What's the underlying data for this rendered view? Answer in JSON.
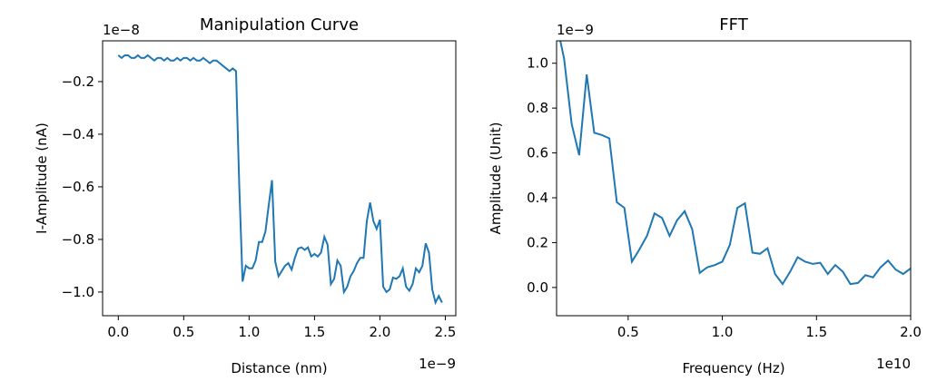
{
  "chart_data": [
    {
      "type": "line",
      "title": "Manipulation Curve",
      "xlabel": "Distance (nm)",
      "ylabel": "I-Amplitude (nA)",
      "x_offset_text": "1e−9",
      "y_offset_text": "1e−8",
      "grid": false,
      "xlim": [
        -0.12,
        2.58
      ],
      "ylim": [
        -1.09,
        -0.045
      ],
      "xticks": [
        {
          "value": 0,
          "label": "0.0"
        },
        {
          "value": 0.5,
          "label": "0.5"
        },
        {
          "value": 1,
          "label": "1.0"
        },
        {
          "value": 1.5,
          "label": "1.5"
        },
        {
          "value": 2,
          "label": "2.0"
        },
        {
          "value": 2.5,
          "label": "2.5"
        }
      ],
      "yticks": [
        {
          "value": -1,
          "label": "−1.0"
        },
        {
          "value": -0.8,
          "label": "−0.8"
        },
        {
          "value": -0.6,
          "label": "−0.6"
        },
        {
          "value": -0.4,
          "label": "−0.4"
        },
        {
          "value": -0.2,
          "label": "−0.2"
        }
      ],
      "x": [
        0,
        0.025,
        0.05,
        0.075,
        0.1,
        0.125,
        0.15,
        0.175,
        0.2,
        0.225,
        0.25,
        0.275,
        0.3,
        0.325,
        0.35,
        0.375,
        0.4,
        0.425,
        0.45,
        0.475,
        0.5,
        0.525,
        0.55,
        0.575,
        0.6,
        0.625,
        0.65,
        0.675,
        0.7,
        0.725,
        0.75,
        0.775,
        0.8,
        0.825,
        0.85,
        0.875,
        0.9,
        0.925,
        0.95,
        0.975,
        1,
        1.025,
        1.05,
        1.075,
        1.1,
        1.125,
        1.15,
        1.175,
        1.2,
        1.225,
        1.25,
        1.275,
        1.3,
        1.325,
        1.35,
        1.375,
        1.4,
        1.425,
        1.45,
        1.475,
        1.5,
        1.525,
        1.55,
        1.575,
        1.6,
        1.625,
        1.65,
        1.675,
        1.7,
        1.725,
        1.75,
        1.775,
        1.8,
        1.825,
        1.85,
        1.875,
        1.9,
        1.925,
        1.95,
        1.975,
        2,
        2.025,
        2.05,
        2.075,
        2.1,
        2.125,
        2.15,
        2.175,
        2.2,
        2.225,
        2.25,
        2.275,
        2.3,
        2.325,
        2.35,
        2.375,
        2.4,
        2.425,
        2.45,
        2.475
      ],
      "series": [
        {
          "color": "#1f77b4",
          "values": [
            -0.1,
            -0.11,
            -0.1,
            -0.1,
            -0.11,
            -0.11,
            -0.1,
            -0.11,
            -0.11,
            -0.1,
            -0.11,
            -0.12,
            -0.11,
            -0.11,
            -0.12,
            -0.11,
            -0.12,
            -0.12,
            -0.11,
            -0.12,
            -0.11,
            -0.11,
            -0.12,
            -0.11,
            -0.12,
            -0.12,
            -0.11,
            -0.12,
            -0.13,
            -0.12,
            -0.12,
            -0.13,
            -0.14,
            -0.15,
            -0.16,
            -0.15,
            -0.16,
            -0.6,
            -0.96,
            -0.9,
            -0.91,
            -0.91,
            -0.88,
            -0.81,
            -0.81,
            -0.77,
            -0.67,
            -0.575,
            -0.885,
            -0.94,
            -0.92,
            -0.9,
            -0.89,
            -0.915,
            -0.87,
            -0.835,
            -0.83,
            -0.84,
            -0.83,
            -0.865,
            -0.855,
            -0.865,
            -0.85,
            -0.79,
            -0.82,
            -0.97,
            -0.95,
            -0.88,
            -0.9,
            -1.0,
            -0.98,
            -0.94,
            -0.92,
            -0.89,
            -0.87,
            -0.87,
            -0.73,
            -0.66,
            -0.73,
            -0.76,
            -0.725,
            -0.98,
            -1.0,
            -0.99,
            -0.945,
            -0.95,
            -0.94,
            -0.91,
            -0.98,
            -0.995,
            -0.97,
            -0.91,
            -0.925,
            -0.9,
            -0.815,
            -0.85,
            -0.99,
            -1.04,
            -1.015,
            -1.04
          ]
        }
      ]
    },
    {
      "type": "line",
      "title": "FFT",
      "xlabel": "Frequency (Hz)",
      "ylabel": "Amplitude (Unit)",
      "x_offset_text": "1e10",
      "y_offset_text": "1e−9",
      "grid": false,
      "xlim": [
        0.12,
        2.0
      ],
      "ylim": [
        -0.126,
        1.1
      ],
      "xticks": [
        0.5,
        {
          "value": 1,
          "label": "1.0"
        },
        1.5,
        {
          "value": 2,
          "label": "2.0"
        }
      ],
      "yticks": [
        {
          "value": 0,
          "label": "0.0"
        },
        0.2,
        0.4,
        0.6,
        0.8,
        {
          "value": 1,
          "label": "1.0"
        }
      ],
      "x": [
        0.12,
        0.16,
        0.2,
        0.24,
        0.28,
        0.32,
        0.36,
        0.4,
        0.44,
        0.48,
        0.52,
        0.56,
        0.6,
        0.64,
        0.68,
        0.72,
        0.76,
        0.8,
        0.84,
        0.88,
        0.92,
        0.96,
        1,
        1.04,
        1.08,
        1.12,
        1.16,
        1.2,
        1.24,
        1.28,
        1.32,
        1.36,
        1.4,
        1.44,
        1.48,
        1.52,
        1.56,
        1.6,
        1.64,
        1.68,
        1.72,
        1.76,
        1.8,
        1.84,
        1.88,
        1.92,
        1.96,
        2
      ],
      "series": [
        {
          "color": "#1f77b4",
          "values": [
            1.18,
            1.02,
            0.73,
            0.59,
            0.95,
            0.69,
            0.68,
            0.665,
            0.38,
            0.355,
            0.115,
            0.17,
            0.23,
            0.33,
            0.31,
            0.23,
            0.3,
            0.34,
            0.26,
            0.065,
            0.09,
            0.1,
            0.115,
            0.19,
            0.355,
            0.375,
            0.155,
            0.15,
            0.175,
            0.06,
            0.015,
            0.07,
            0.135,
            0.115,
            0.105,
            0.11,
            0.06,
            0.1,
            0.07,
            0.015,
            0.02,
            0.055,
            0.045,
            0.09,
            0.12,
            0.08,
            0.06,
            0.085
          ]
        }
      ]
    }
  ]
}
